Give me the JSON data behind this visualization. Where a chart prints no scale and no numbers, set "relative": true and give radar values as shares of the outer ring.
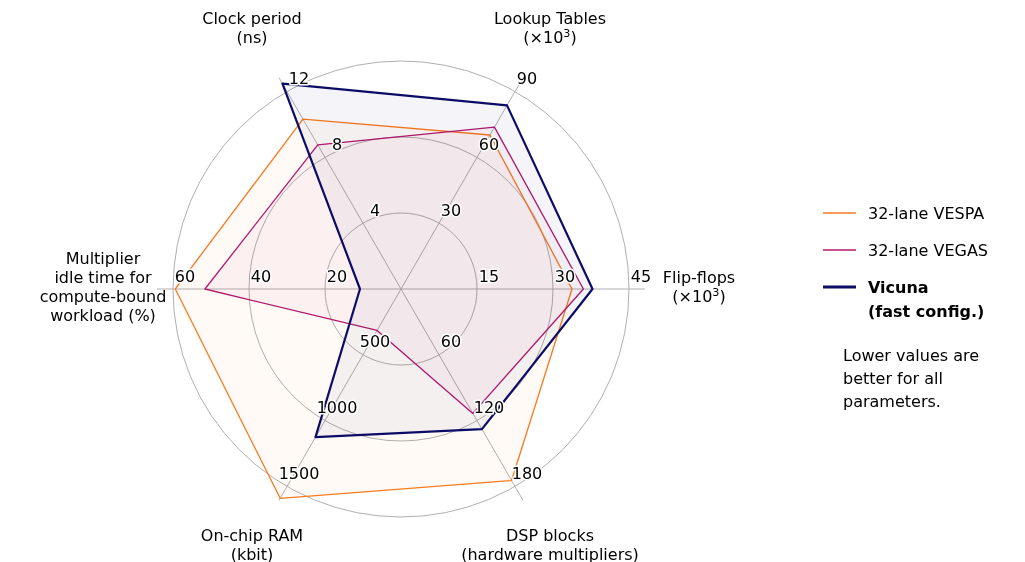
{
  "chart_data": {
    "type": "radar",
    "relative": true,
    "categories": [
      "Lookup Tables\n(×10$^{3}$)",
      "Flip-flops\n(×10$^{3}$)",
      "DSP blocks\n(hardware multipliers)",
      "On-chip RAM\n(kbit)",
      "Multiplier\nidle time for\ncompute-bound\nworkload (%)",
      "Clock period\n(ns)"
    ],
    "series": [
      {
        "name": "32-lane VESPA",
        "color": "#f97a1f",
        "values": [
          0.78,
          0.75,
          0.97,
          1.06,
          0.99,
          0.86
        ]
      },
      {
        "name": "32-lane VEGAS",
        "color": "#b3196b",
        "values": [
          0.82,
          0.8,
          0.63,
          0.21,
          0.86,
          0.73
        ]
      },
      {
        "name": "Vicuna\n(fast config.)",
        "color": "#0c0c66",
        "values": [
          0.93,
          0.84,
          0.71,
          0.75,
          0.18,
          1.04
        ]
      }
    ],
    "annotations": [
      {
        "text": "30",
        "x": "Lookup Tables\n(×10$^{3}$)"
      },
      {
        "text": "60",
        "x": "Lookup Tables\n(×10$^{3}$)"
      },
      {
        "text": "90",
        "x": "Lookup Tables\n(×10$^{3}$)"
      },
      {
        "text": "15",
        "x": "Flip-flops\n(×10$^{3}$)"
      },
      {
        "text": "30",
        "x": "Flip-flops\n(×10$^{3}$)"
      },
      {
        "text": "45",
        "x": "Flip-flops\n(×10$^{3}$)"
      },
      {
        "text": "60",
        "x": "DSP blocks\n(hardware multipliers)"
      },
      {
        "text": "120",
        "x": "DSP blocks\n(hardware multipliers)"
      },
      {
        "text": "180",
        "x": "DSP blocks\n(hardware multipliers)"
      },
      {
        "text": "500",
        "x": "On-chip RAM\n(kbit)"
      },
      {
        "text": "1000",
        "x": "On-chip RAM\n(kbit)"
      },
      {
        "text": "1500",
        "x": "On-chip RAM\n(kbit)"
      },
      {
        "text": "20",
        "x": "Multiplier\nidle time for\ncompute-bound\nworkload (%)"
      },
      {
        "text": "40",
        "x": "Multiplier\nidle time for\ncompute-bound\nworkload (%)"
      },
      {
        "text": "60",
        "x": "Multiplier\nidle time for\ncompute-bound\nworkload (%)"
      },
      {
        "text": "4",
        "x": "Clock period\n(ns)"
      },
      {
        "text": "8",
        "x": "Clock period\n(ns)"
      },
      {
        "text": "12",
        "x": "Clock period\n(ns)"
      },
      "Lower values are better for all parameters."
    ],
    "grid": true,
    "legend": "right"
  }
}
